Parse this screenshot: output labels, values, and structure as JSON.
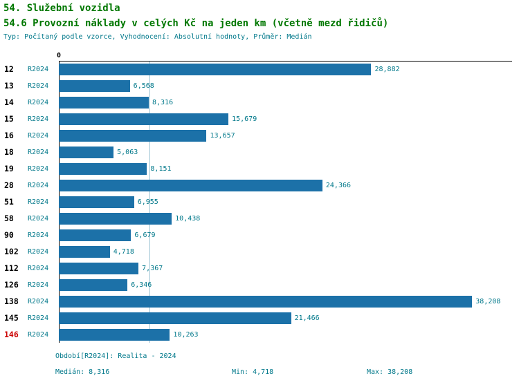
{
  "header": {
    "title": "54. Služební vozidla",
    "subtitle": "54.6 Provozní náklady v celých Kč na jeden km (včetně mezd řidičů)",
    "meta": "Typ: Počítaný podle vzorce, Vyhodnocení: Absolutní hodnoty, Průměr: Medián"
  },
  "chart_data": {
    "type": "bar",
    "orientation": "horizontal",
    "title": "54.6 Provozní náklady v celých Kč na jeden km (včetně mezd řidičů)",
    "origin_label": "0",
    "period_label": "R2024",
    "xlim": [
      0,
      41900
    ],
    "median_value": 8316,
    "legend": "none",
    "grid": "single-median-gridline",
    "categories": [
      "12",
      "13",
      "14",
      "15",
      "16",
      "18",
      "19",
      "28",
      "51",
      "58",
      "90",
      "102",
      "112",
      "126",
      "138",
      "145",
      "146"
    ],
    "rows": [
      {
        "id": "12",
        "period": "R2024",
        "value": 28882,
        "value_label": "28,882",
        "highlight": false
      },
      {
        "id": "13",
        "period": "R2024",
        "value": 6568,
        "value_label": "6,568",
        "highlight": false
      },
      {
        "id": "14",
        "period": "R2024",
        "value": 8316,
        "value_label": "8,316",
        "highlight": false
      },
      {
        "id": "15",
        "period": "R2024",
        "value": 15679,
        "value_label": "15,679",
        "highlight": false
      },
      {
        "id": "16",
        "period": "R2024",
        "value": 13657,
        "value_label": "13,657",
        "highlight": false
      },
      {
        "id": "18",
        "period": "R2024",
        "value": 5063,
        "value_label": "5,063",
        "highlight": false
      },
      {
        "id": "19",
        "period": "R2024",
        "value": 8151,
        "value_label": "8,151",
        "highlight": false
      },
      {
        "id": "28",
        "period": "R2024",
        "value": 24366,
        "value_label": "24,366",
        "highlight": false
      },
      {
        "id": "51",
        "period": "R2024",
        "value": 6955,
        "value_label": "6,955",
        "highlight": false
      },
      {
        "id": "58",
        "period": "R2024",
        "value": 10438,
        "value_label": "10,438",
        "highlight": false
      },
      {
        "id": "90",
        "period": "R2024",
        "value": 6679,
        "value_label": "6,679",
        "highlight": false
      },
      {
        "id": "102",
        "period": "R2024",
        "value": 4718,
        "value_label": "4,718",
        "highlight": false
      },
      {
        "id": "112",
        "period": "R2024",
        "value": 7367,
        "value_label": "7,367",
        "highlight": false
      },
      {
        "id": "126",
        "period": "R2024",
        "value": 6346,
        "value_label": "6,346",
        "highlight": false
      },
      {
        "id": "138",
        "period": "R2024",
        "value": 38208,
        "value_label": "38,208",
        "highlight": false
      },
      {
        "id": "145",
        "period": "R2024",
        "value": 21466,
        "value_label": "21,466",
        "highlight": false
      },
      {
        "id": "146",
        "period": "R2024",
        "value": 10263,
        "value_label": "10,263",
        "highlight": true
      }
    ]
  },
  "footer": {
    "period_line": "Období[R2024]: Realita - 2024",
    "median": "Medián: 8,316",
    "min": "Min: 4,718",
    "max": "Max: 38,208"
  },
  "colors": {
    "title_green": "#007700",
    "teal_text": "#00788a",
    "bar_blue": "#1c71a8",
    "highlight_red": "#cc0000",
    "median_line": "#9dc3d4"
  }
}
